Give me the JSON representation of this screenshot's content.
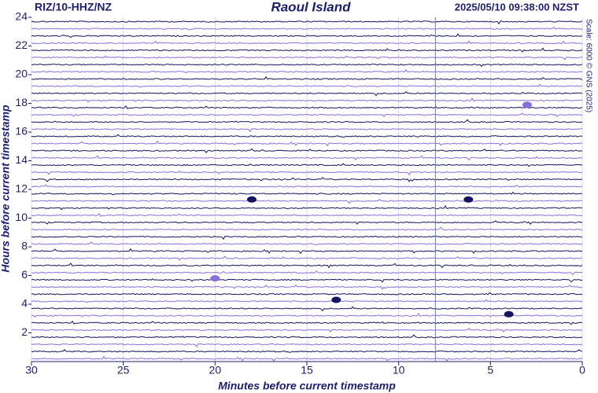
{
  "chart_data": {
    "type": "seismogram",
    "station": "RIZ/10-HHZ/NZ",
    "title": "Raoul Island",
    "timestamp": "2025/05/10 09:38:00 NZST",
    "scale_note": "Scale: 6000 © GNS (2025)",
    "xlabel": "Minutes before current timestamp",
    "ylabel": "Hours before current timestamp",
    "xlim": [
      30,
      0
    ],
    "xticks": [
      30,
      25,
      20,
      15,
      10,
      5,
      0
    ],
    "ylim": [
      0,
      24
    ],
    "yticks": [
      2,
      4,
      6,
      8,
      10,
      12,
      14,
      16,
      18,
      20,
      22,
      24
    ],
    "trace_colors": [
      "#141460",
      "#8a6ee0"
    ],
    "marker_x": 8,
    "marker_color": "#3a8fd0",
    "grid": true,
    "events": [
      {
        "x": 3.0,
        "y": 17.9,
        "color": "#8a6ee0"
      },
      {
        "x": 6.2,
        "y": 11.3,
        "color": "#141460"
      },
      {
        "x": 18.0,
        "y": 11.3,
        "color": "#141460"
      },
      {
        "x": 20.0,
        "y": 5.8,
        "color": "#8a6ee0"
      },
      {
        "x": 13.4,
        "y": 4.3,
        "color": "#141460"
      },
      {
        "x": 4.0,
        "y": 3.3,
        "color": "#141460"
      }
    ]
  }
}
